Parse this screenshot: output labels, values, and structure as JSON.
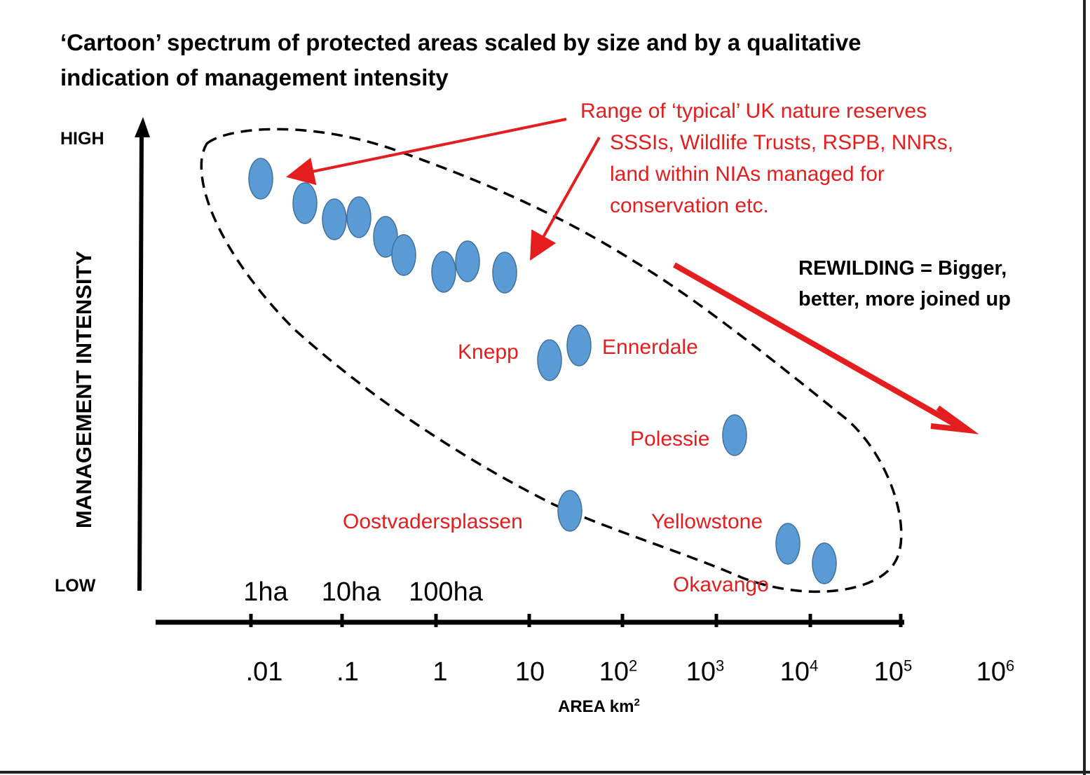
{
  "title": "‘Cartoon’ spectrum of protected areas scaled by size and by a qualitative indication of management intensity",
  "y_axis": {
    "label": "MANAGEMENT INTENSITY",
    "high": "HIGH",
    "low": "LOW"
  },
  "x_axis": {
    "label_base": "AREA km",
    "label_exp": "2",
    "ha_labels": [
      "1ha",
      "10ha",
      "100ha"
    ],
    "ticks": [
      {
        "base": ".01",
        "exp": ""
      },
      {
        "base": ".1",
        "exp": ""
      },
      {
        "base": "1",
        "exp": ""
      },
      {
        "base": "10",
        "exp": ""
      },
      {
        "base": "10",
        "exp": "2"
      },
      {
        "base": "10",
        "exp": "3"
      },
      {
        "base": "10",
        "exp": "4"
      },
      {
        "base": "10",
        "exp": "5"
      },
      {
        "base": "10",
        "exp": "6"
      }
    ]
  },
  "annotation": {
    "lines": [
      "Range of ‘typical’ UK nature reserves",
      "SSSIs, Wildlife Trusts, RSPB, NNRs,",
      "land within NIAs managed for",
      "conservation etc."
    ]
  },
  "rewilding": {
    "lines": [
      "REWILDING = Bigger,",
      "better, more joined up"
    ]
  },
  "sites": [
    "Knepp",
    "Ennerdale",
    "Polessie",
    "Oostvadersplassen",
    "Yellowstone",
    "Okavango"
  ],
  "colors": {
    "dot": "#5b9bd5",
    "dot_edge": "#41719c",
    "annotation": "#e41e1e",
    "axis": "#000000"
  }
}
